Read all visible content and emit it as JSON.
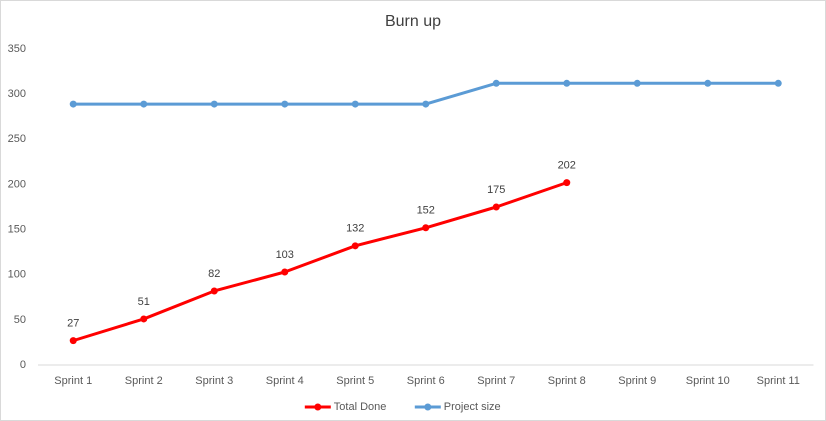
{
  "chart_data": {
    "type": "line",
    "title": "Burn up",
    "categories": [
      "Sprint 1",
      "Sprint 2",
      "Sprint 3",
      "Sprint 4",
      "Sprint 5",
      "Sprint 6",
      "Sprint 7",
      "Sprint 8",
      "Sprint 9",
      "Sprint 10",
      "Sprint 11"
    ],
    "series": [
      {
        "name": "Total Done",
        "color": "#ff0000",
        "values": [
          27,
          51,
          82,
          103,
          132,
          152,
          175,
          202,
          null,
          null,
          null
        ],
        "data_labels": true
      },
      {
        "name": "Project size",
        "color": "#5b9bd5",
        "values": [
          289,
          289,
          289,
          289,
          289,
          289,
          312,
          312,
          312,
          312,
          312
        ],
        "data_labels": false
      }
    ],
    "ylim": [
      0,
      350
    ],
    "yticks": [
      0,
      50,
      100,
      150,
      200,
      250,
      300,
      350
    ],
    "grid": false,
    "legend": "bottom"
  }
}
